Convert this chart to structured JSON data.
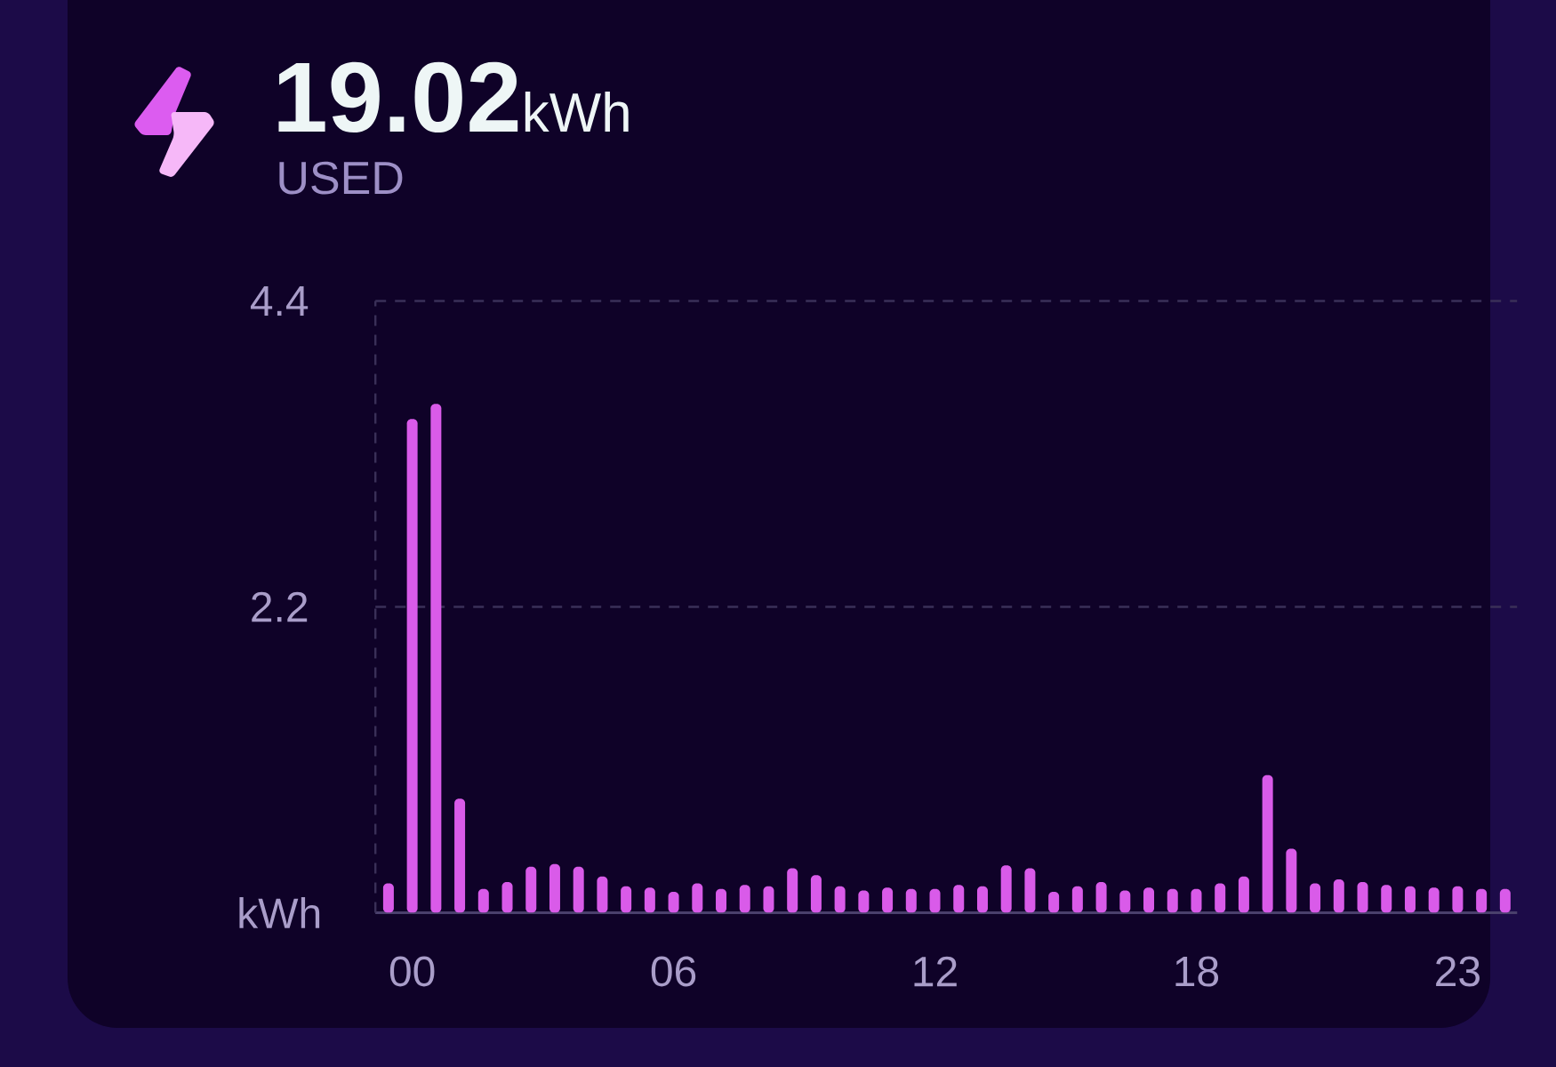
{
  "chart_data": {
    "type": "bar",
    "title": "**19.02**kWh",
    "subtitle": "USED",
    "categories": [
      null,
      "00",
      null,
      null,
      null,
      null,
      null,
      null,
      null,
      null,
      null,
      null,
      "06",
      null,
      null,
      null,
      null,
      null,
      null,
      null,
      null,
      null,
      null,
      "12",
      null,
      null,
      null,
      null,
      null,
      null,
      null,
      null,
      null,
      null,
      "18",
      null,
      null,
      null,
      null,
      null,
      null,
      null,
      null,
      null,
      null,
      "23",
      null,
      null
    ],
    "values": [
      0.21,
      3.55,
      3.66,
      0.82,
      0.17,
      0.22,
      0.33,
      0.35,
      0.33,
      0.26,
      0.19,
      0.18,
      0.15,
      0.21,
      0.17,
      0.2,
      0.19,
      0.32,
      0.27,
      0.19,
      0.16,
      0.18,
      0.17,
      0.17,
      0.2,
      0.19,
      0.34,
      0.32,
      0.15,
      0.19,
      0.22,
      0.16,
      0.18,
      0.17,
      0.17,
      0.21,
      0.26,
      0.99,
      0.46,
      0.21,
      0.24,
      0.22,
      0.2,
      0.19,
      0.18,
      0.19,
      0.17,
      0.17
    ],
    "color": "#d95be9",
    "ylim": [
      0,
      4.4
    ],
    "yticks": [
      {
        "value": 0,
        "label": "kWh"
      },
      2.2,
      4.4
    ],
    "grid": "y"
  }
}
